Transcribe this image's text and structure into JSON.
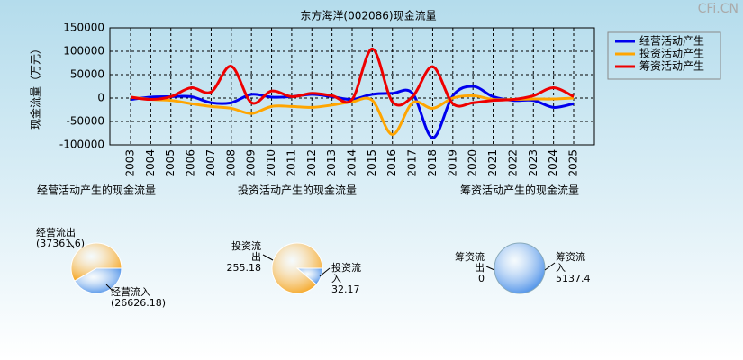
{
  "chart_data": [
    {
      "type": "line",
      "title": "东方海洋(002086)现金流量",
      "y_label": "现金流量（万元）",
      "categories": [
        "2003",
        "2004",
        "2005",
        "2006",
        "2007",
        "2008",
        "2009",
        "2010",
        "2011",
        "2012",
        "2013",
        "2014",
        "2015",
        "2016",
        "2017",
        "2018",
        "2019",
        "2020",
        "2021",
        "2022",
        "2023",
        "2024",
        "2025"
      ],
      "ylim": [
        -100000,
        150000
      ],
      "yticks": [
        -100000,
        -50000,
        0,
        50000,
        100000,
        150000
      ],
      "grid": true,
      "legend": "top-right",
      "series": [
        {
          "name": "经营活动产生",
          "color": "#0000ee",
          "values": [
            -3000,
            2000,
            3000,
            3000,
            -10000,
            -10000,
            8000,
            2000,
            3000,
            8000,
            3000,
            -3000,
            8000,
            10000,
            10000,
            -85000,
            5000,
            25000,
            3000,
            -5000,
            -5000,
            -20000,
            -12000
          ]
        },
        {
          "name": "投资活动产生",
          "color": "#ffa500",
          "values": [
            2000,
            -3000,
            -5000,
            -12000,
            -18000,
            -22000,
            -33000,
            -18000,
            -18000,
            -20000,
            -15000,
            -8000,
            -5000,
            -78000,
            -10000,
            -22000,
            0,
            5000,
            -3000,
            -3000,
            -2000,
            -2000,
            0
          ]
        },
        {
          "name": "筹资活动产生",
          "color": "#ee0000",
          "values": [
            2000,
            -3000,
            3000,
            22000,
            13000,
            68000,
            -10000,
            15000,
            3000,
            10000,
            5000,
            -3000,
            105000,
            -8000,
            3000,
            67000,
            -12000,
            -10000,
            -5000,
            -3000,
            5000,
            22000,
            3000
          ]
        }
      ]
    },
    {
      "type": "pie",
      "title": "经营活动产生的现金流量",
      "categories": [
        "经营流入",
        "经营流出"
      ],
      "values": [
        26626.18,
        37361.6
      ],
      "value_labels": [
        "(26626.18)",
        "(37361.6)"
      ],
      "colors": [
        "#4a8fe8",
        "#f5a623"
      ]
    },
    {
      "type": "pie",
      "title": "投资活动产生的现金流量",
      "categories": [
        "投资流入",
        "投资流出"
      ],
      "values": [
        32.17,
        255.18
      ],
      "colors": [
        "#4a8fe8",
        "#f5a623"
      ]
    },
    {
      "type": "pie",
      "title": "筹资活动产生的现金流量",
      "categories": [
        "筹资流入",
        "筹资流出"
      ],
      "values": [
        5137.4,
        0
      ],
      "colors": [
        "#4a8fe8",
        "#f5a623"
      ]
    }
  ],
  "watermark": "CFi.CN"
}
